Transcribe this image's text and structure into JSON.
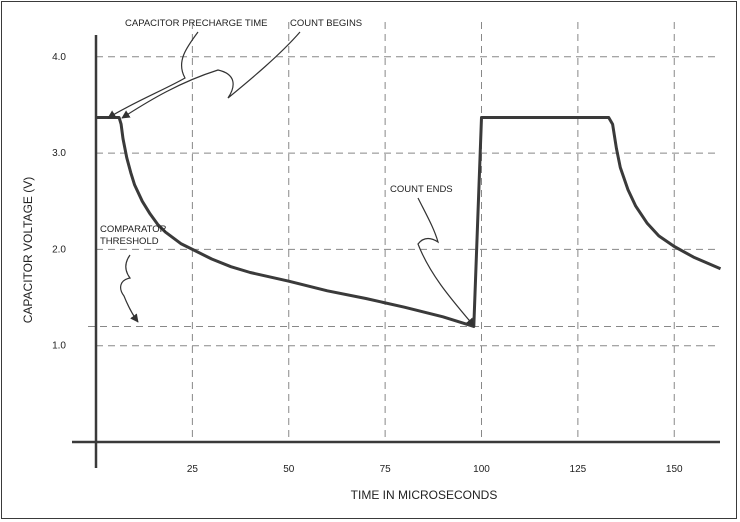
{
  "chart_data": {
    "type": "line",
    "title": "",
    "xlabel": "TIME IN MICROSECONDS",
    "ylabel": "CAPACITOR VOLTAGE (V)",
    "xlim": [
      0,
      162
    ],
    "ylim": [
      0,
      4.25
    ],
    "grid": true,
    "x_ticks": [
      25,
      50,
      75,
      100,
      125,
      150
    ],
    "y_ticks": [
      1.0,
      2.0,
      3.0,
      4.0
    ],
    "x_tick_labels": [
      "25",
      "50",
      "75",
      "100",
      "125",
      "150"
    ],
    "y_tick_labels": [
      "1.0",
      "2.0",
      "3.0",
      "4.0"
    ],
    "threshold": 1.2,
    "series": [
      {
        "values": [
          [
            0,
            3.37
          ],
          [
            6,
            3.37
          ],
          [
            6.5,
            3.3
          ],
          [
            7,
            3.15
          ],
          [
            8,
            2.95
          ],
          [
            9,
            2.8
          ],
          [
            10,
            2.67
          ],
          [
            12,
            2.5
          ],
          [
            14,
            2.37
          ],
          [
            16,
            2.26
          ],
          [
            18,
            2.18
          ],
          [
            20,
            2.12
          ],
          [
            22,
            2.06
          ],
          [
            25,
            2.0
          ],
          [
            30,
            1.9
          ],
          [
            35,
            1.82
          ],
          [
            40,
            1.76
          ],
          [
            50,
            1.67
          ],
          [
            60,
            1.57
          ],
          [
            70,
            1.49
          ],
          [
            80,
            1.4
          ],
          [
            90,
            1.3
          ],
          [
            98,
            1.2
          ],
          [
            100,
            3.37
          ],
          [
            133,
            3.37
          ],
          [
            134,
            3.3
          ],
          [
            135,
            3.05
          ],
          [
            136,
            2.85
          ],
          [
            138,
            2.62
          ],
          [
            140,
            2.45
          ],
          [
            143,
            2.27
          ],
          [
            146,
            2.14
          ],
          [
            150,
            2.03
          ],
          [
            155,
            1.92
          ],
          [
            162,
            1.8
          ]
        ]
      }
    ],
    "annotations": [
      {
        "text": "CAPACITOR PRECHARGE TIME",
        "x": 3,
        "y": 3.37
      },
      {
        "text": "COUNT BEGINS",
        "x": 6,
        "y": 3.37
      },
      {
        "text": "COUNT ENDS",
        "x": 98,
        "y": 1.2
      },
      {
        "lines": [
          "COMPARATOR",
          "THRESHOLD"
        ],
        "x": 10,
        "y": 1.2
      }
    ]
  }
}
